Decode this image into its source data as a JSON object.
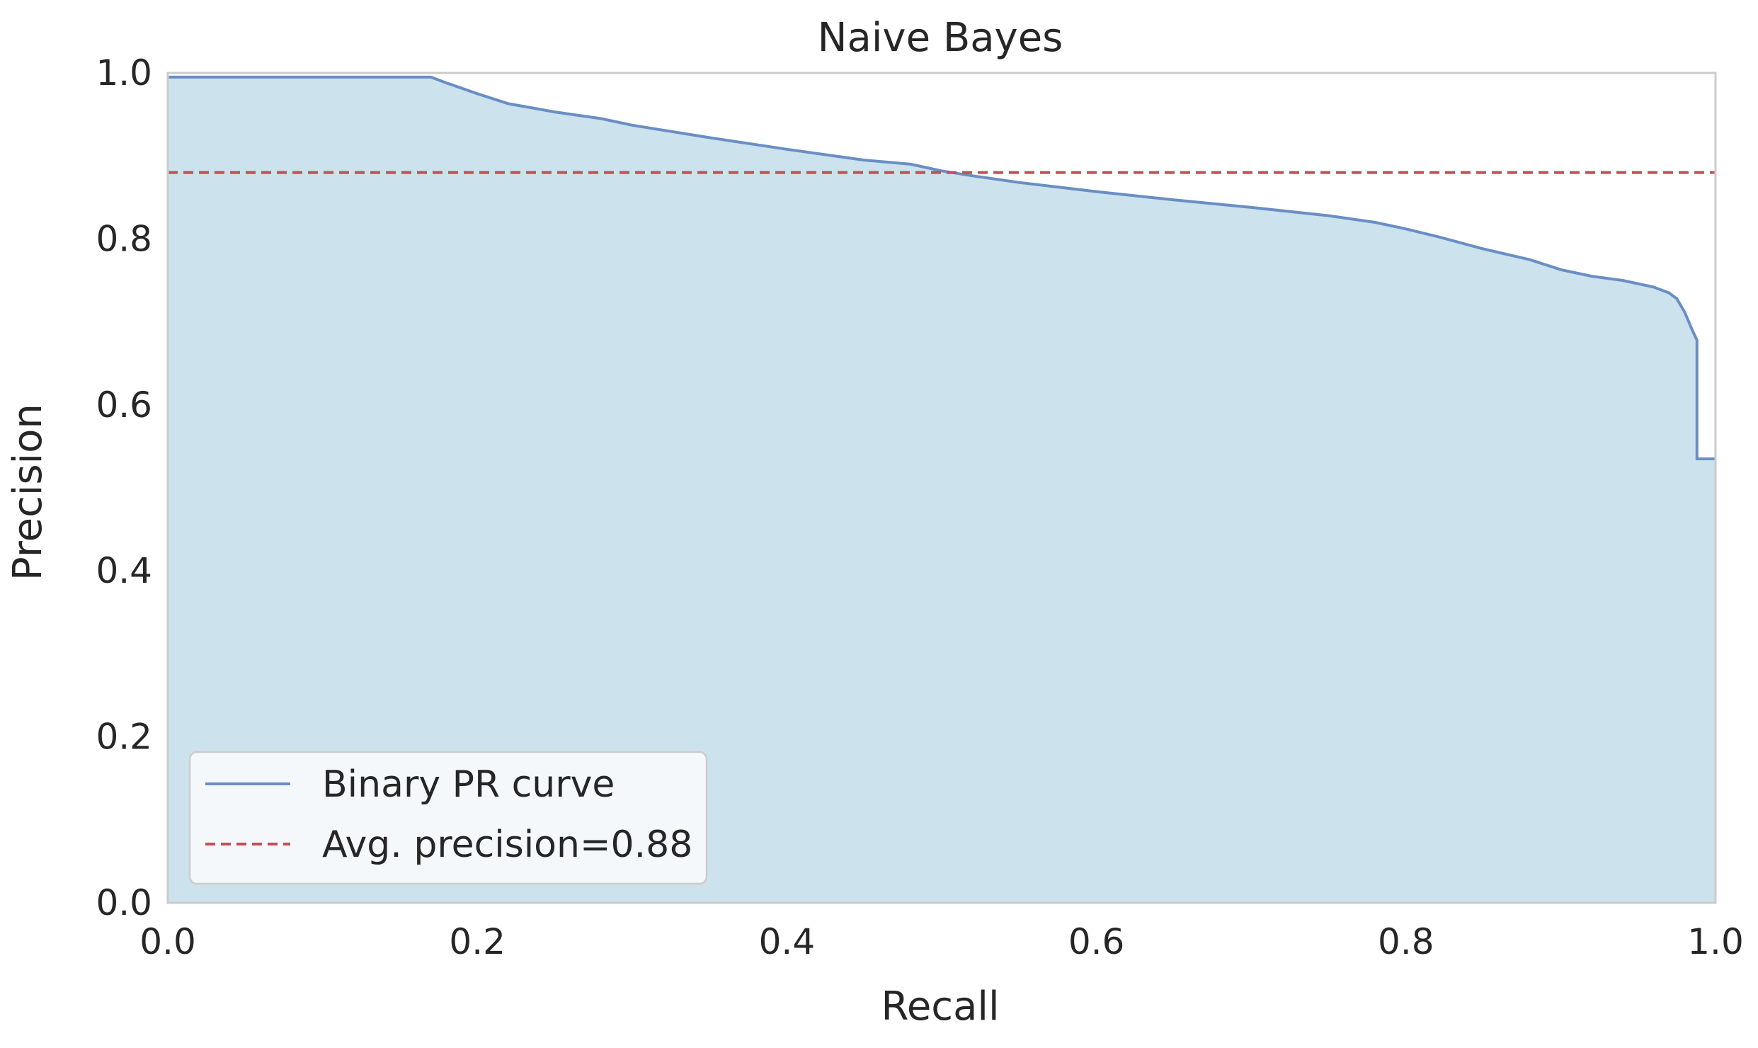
{
  "chart_data": {
    "type": "line",
    "title": "Naive Bayes",
    "xlabel": "Recall",
    "ylabel": "Precision",
    "xlim": [
      0.0,
      1.0
    ],
    "ylim": [
      0.0,
      1.0
    ],
    "xticks": [
      "0.0",
      "0.2",
      "0.4",
      "0.6",
      "0.8",
      "1.0"
    ],
    "yticks": [
      "0.0",
      "0.2",
      "0.4",
      "0.6",
      "0.8",
      "1.0"
    ],
    "grid": false,
    "legend_position": "lower-left",
    "series": [
      {
        "name": "Binary PR curve",
        "color": "#6a8ec4",
        "fill": "#cce2ed",
        "style": "step",
        "x": [
          0.0,
          0.17,
          0.18,
          0.2,
          0.22,
          0.25,
          0.28,
          0.3,
          0.35,
          0.4,
          0.45,
          0.48,
          0.5,
          0.52,
          0.55,
          0.6,
          0.65,
          0.7,
          0.75,
          0.78,
          0.8,
          0.82,
          0.85,
          0.88,
          0.9,
          0.92,
          0.94,
          0.96,
          0.97,
          0.975,
          0.98,
          0.985,
          0.988,
          0.988,
          1.0
        ],
        "y": [
          0.995,
          0.995,
          0.988,
          0.975,
          0.963,
          0.953,
          0.945,
          0.937,
          0.922,
          0.908,
          0.895,
          0.89,
          0.882,
          0.876,
          0.868,
          0.857,
          0.847,
          0.838,
          0.828,
          0.82,
          0.812,
          0.803,
          0.788,
          0.775,
          0.763,
          0.755,
          0.75,
          0.742,
          0.735,
          0.728,
          0.712,
          0.69,
          0.678,
          0.535,
          0.535
        ]
      },
      {
        "name": "Avg. precision=0.88",
        "color": "#c44e52",
        "style": "dashed",
        "x": [
          0.0,
          1.0
        ],
        "y": [
          0.88,
          0.88
        ]
      }
    ]
  }
}
